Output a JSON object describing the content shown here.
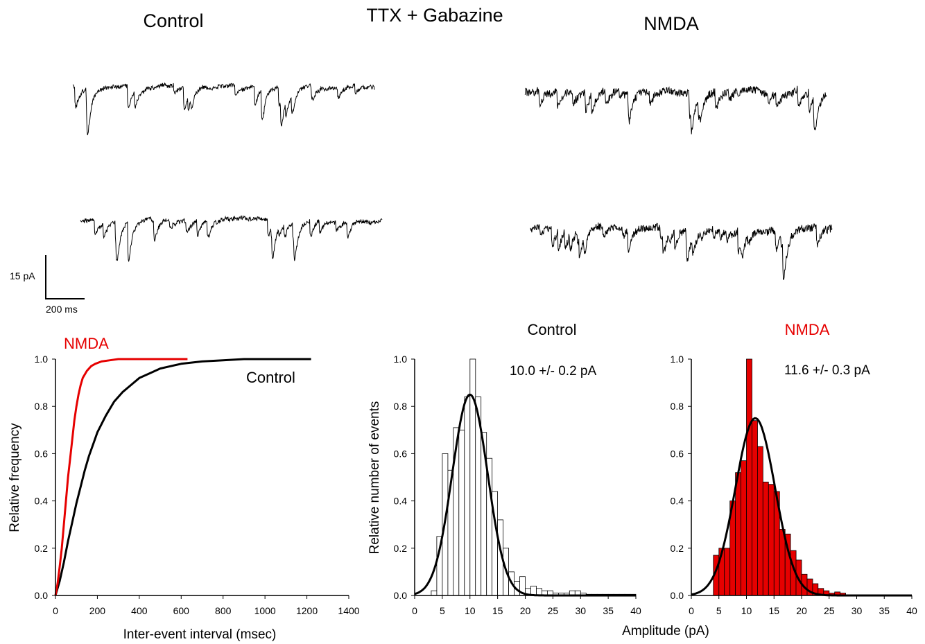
{
  "headers": {
    "control": "Control",
    "condition": "TTX + Gabazine",
    "nmda": "NMDA"
  },
  "scale_bar": {
    "amplitude_label": "15 pA",
    "time_label": "200 ms"
  },
  "colors": {
    "nmda": "#e60000",
    "control": "#000000",
    "control_bar_fill": "#ffffff"
  },
  "chart_data": [
    {
      "type": "line",
      "title": "",
      "xlabel": "Inter-event interval (msec)",
      "ylabel": "Relative frequency",
      "xlim": [
        0,
        1400
      ],
      "ylim": [
        0,
        1.0
      ],
      "xticks": [
        0,
        200,
        400,
        600,
        800,
        1000,
        1200,
        1400
      ],
      "yticks": [
        0.0,
        0.2,
        0.4,
        0.6,
        0.8,
        1.0
      ],
      "series": [
        {
          "name": "NMDA",
          "color": "#e60000",
          "x": [
            0,
            10,
            20,
            30,
            40,
            50,
            60,
            70,
            80,
            90,
            100,
            110,
            120,
            130,
            150,
            170,
            190,
            220,
            260,
            300,
            350,
            400,
            500,
            630
          ],
          "y": [
            0,
            0.05,
            0.12,
            0.2,
            0.3,
            0.4,
            0.5,
            0.58,
            0.66,
            0.74,
            0.8,
            0.85,
            0.89,
            0.92,
            0.95,
            0.97,
            0.98,
            0.99,
            0.995,
            1.0,
            1.0,
            1.0,
            1.0,
            1.0
          ]
        },
        {
          "name": "Control",
          "color": "#000000",
          "x": [
            0,
            20,
            40,
            60,
            80,
            100,
            120,
            140,
            160,
            180,
            200,
            240,
            280,
            320,
            360,
            400,
            450,
            500,
            550,
            600,
            700,
            800,
            900,
            1000,
            1100,
            1220
          ],
          "y": [
            0,
            0.06,
            0.14,
            0.23,
            0.31,
            0.39,
            0.46,
            0.53,
            0.59,
            0.64,
            0.69,
            0.76,
            0.82,
            0.86,
            0.89,
            0.92,
            0.94,
            0.96,
            0.97,
            0.98,
            0.99,
            0.995,
            1.0,
            1.0,
            1.0,
            1.0
          ]
        }
      ]
    },
    {
      "type": "bar",
      "title": "Control",
      "annotation": "10.0 +/- 0.2 pA",
      "xlabel": "",
      "ylabel": "Relative number of events",
      "xlim": [
        0,
        40
      ],
      "ylim": [
        0,
        1.0
      ],
      "xticks": [
        0,
        5,
        10,
        15,
        20,
        25,
        30,
        35,
        40
      ],
      "yticks": [
        0.0,
        0.2,
        0.4,
        0.6,
        0.8,
        1.0
      ],
      "bin_width": 1,
      "bin_starts": [
        3,
        4,
        5,
        6,
        7,
        8,
        9,
        10,
        11,
        12,
        13,
        14,
        15,
        16,
        17,
        18,
        19,
        20,
        21,
        22,
        23,
        24,
        25,
        26,
        27,
        28,
        29,
        30,
        31,
        32,
        33,
        34,
        35,
        36,
        37,
        38,
        39
      ],
      "values": [
        0.02,
        0.25,
        0.6,
        0.53,
        0.71,
        0.7,
        0.84,
        1.0,
        0.84,
        0.69,
        0.58,
        0.44,
        0.32,
        0.2,
        0.1,
        0.06,
        0.08,
        0.03,
        0.04,
        0.03,
        0.02,
        0.02,
        0.01,
        0.01,
        0.01,
        0.02,
        0.02,
        0.01,
        0.005,
        0.005,
        0.005,
        0.005,
        0.005,
        0.005,
        0.005,
        0.005,
        0.005
      ],
      "fit": {
        "type": "gaussian",
        "mean": 10.0,
        "sd": 3.2,
        "peak": 0.85
      }
    },
    {
      "type": "bar",
      "title": "NMDA",
      "annotation": "11.6 +/- 0.3 pA",
      "xlabel": "Amplitude (pA)",
      "ylabel": "",
      "xlim": [
        0,
        40
      ],
      "ylim": [
        0,
        1.0
      ],
      "xticks": [
        0,
        5,
        10,
        15,
        20,
        25,
        30,
        35,
        40
      ],
      "yticks": [
        0.0,
        0.2,
        0.4,
        0.6,
        0.8,
        1.0
      ],
      "bin_width": 1,
      "bin_starts": [
        4,
        5,
        6,
        7,
        8,
        9,
        10,
        11,
        12,
        13,
        14,
        15,
        16,
        17,
        18,
        19,
        20,
        21,
        22,
        23,
        24,
        25,
        26,
        27
      ],
      "values": [
        0.17,
        0.2,
        0.2,
        0.4,
        0.52,
        0.57,
        1.0,
        0.74,
        0.63,
        0.48,
        0.47,
        0.44,
        0.28,
        0.26,
        0.19,
        0.15,
        0.09,
        0.07,
        0.05,
        0.03,
        0.02,
        0.01,
        0.015,
        0.01
      ],
      "fit": {
        "type": "gaussian",
        "mean": 11.6,
        "sd": 3.6,
        "peak": 0.75
      }
    }
  ]
}
